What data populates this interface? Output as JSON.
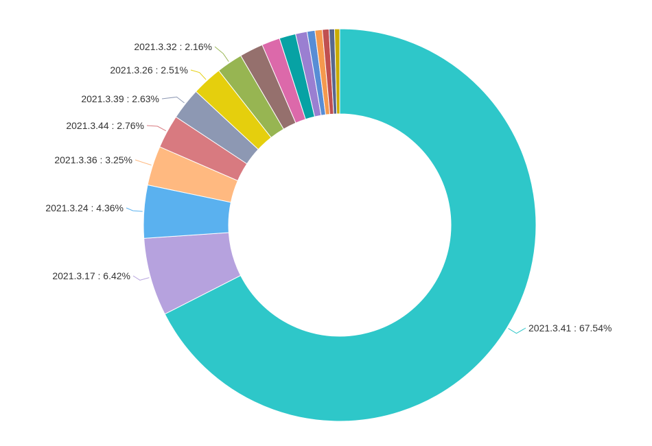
{
  "chart_data": {
    "type": "pie",
    "variant": "donut",
    "start_angle": "top (12 o'clock), clockwise",
    "label_format": "{name} : {value}%",
    "slices": [
      {
        "name": "2021.3.41",
        "value": 67.54,
        "color": "#2ec7c9",
        "labeled": true
      },
      {
        "name": "2021.3.17",
        "value": 6.42,
        "color": "#b6a2de",
        "labeled": true
      },
      {
        "name": "2021.3.24",
        "value": 4.36,
        "color": "#5ab1ef",
        "labeled": true
      },
      {
        "name": "2021.3.36",
        "value": 3.25,
        "color": "#ffb980",
        "labeled": true
      },
      {
        "name": "2021.3.44",
        "value": 2.76,
        "color": "#d87a80",
        "labeled": true
      },
      {
        "name": "2021.3.39",
        "value": 2.63,
        "color": "#8d98b3",
        "labeled": true
      },
      {
        "name": "2021.3.26",
        "value": 2.51,
        "color": "#e5cf0d",
        "labeled": true
      },
      {
        "name": "2021.3.32",
        "value": 2.16,
        "color": "#97b552",
        "labeled": true
      },
      {
        "name": "",
        "value": 1.95,
        "color": "#95706d",
        "labeled": false
      },
      {
        "name": "",
        "value": 1.5,
        "color": "#dc69aa",
        "labeled": false
      },
      {
        "name": "",
        "value": 1.35,
        "color": "#07a2a4",
        "labeled": false
      },
      {
        "name": "",
        "value": 0.95,
        "color": "#9a7fd1",
        "labeled": false
      },
      {
        "name": "",
        "value": 0.65,
        "color": "#588dd5",
        "labeled": false
      },
      {
        "name": "",
        "value": 0.6,
        "color": "#f5994e",
        "labeled": false
      },
      {
        "name": "",
        "value": 0.55,
        "color": "#c05050",
        "labeled": false
      },
      {
        "name": "",
        "value": 0.45,
        "color": "#59678c",
        "labeled": false
      },
      {
        "name": "",
        "value": 0.42,
        "color": "#c9ab00",
        "labeled": false
      }
    ]
  }
}
